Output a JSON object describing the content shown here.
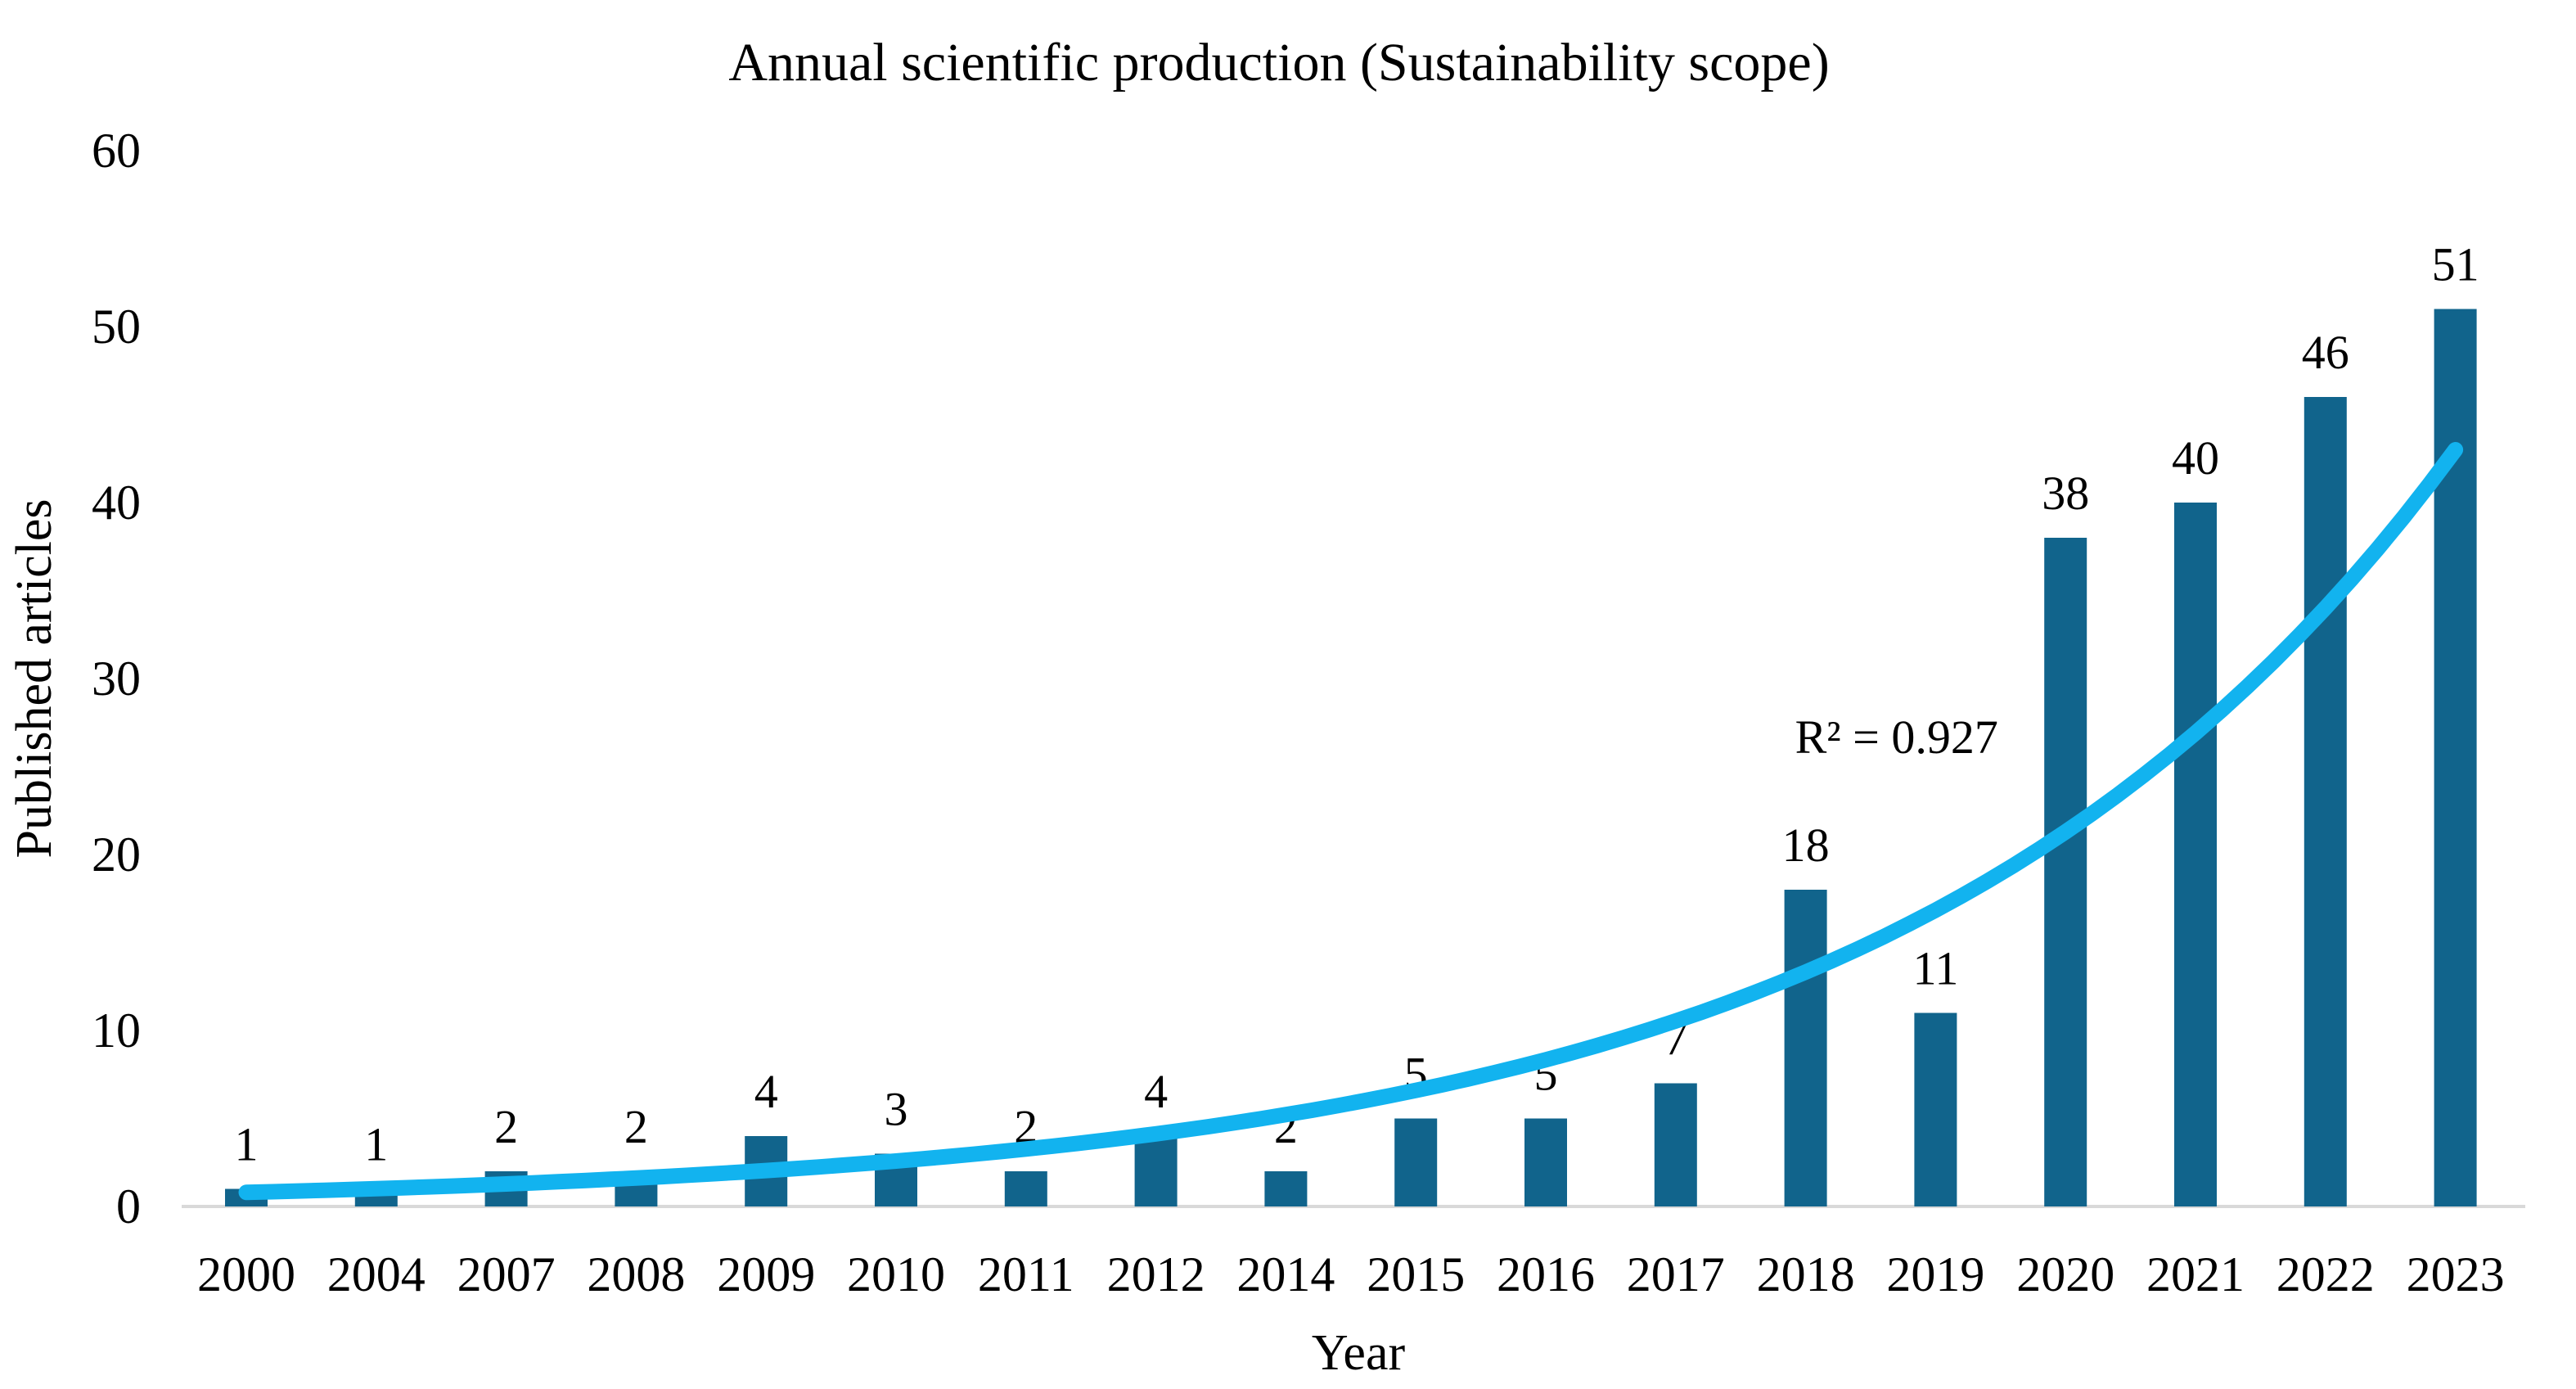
{
  "chart_data": {
    "type": "bar",
    "title": "Annual scientific production (Sustainability scope)",
    "xlabel": "Year",
    "ylabel": "Published articles",
    "categories": [
      "2000",
      "2004",
      "2007",
      "2008",
      "2009",
      "2010",
      "2011",
      "2012",
      "2014",
      "2015",
      "2016",
      "2017",
      "2018",
      "2019",
      "2020",
      "2021",
      "2022",
      "2023"
    ],
    "values": [
      1,
      1,
      2,
      2,
      4,
      3,
      2,
      4,
      2,
      5,
      5,
      7,
      18,
      11,
      38,
      40,
      46,
      51
    ],
    "data_labels": [
      "1",
      "1",
      "2",
      "2",
      "4",
      "3",
      "2",
      "4",
      "2",
      "5",
      "5",
      "7",
      "18",
      "11",
      "38",
      "40",
      "46",
      "51"
    ],
    "ylim": [
      0,
      60
    ],
    "yticks": [
      0,
      10,
      20,
      30,
      40,
      50,
      60
    ],
    "grid": false,
    "legend": "none",
    "bar_color": "#11648c",
    "axis_line_color": "#d9d9d9",
    "text_color": "#000000",
    "trendline": {
      "type": "exponential",
      "color": "#12b3ef",
      "start_value": 0.8,
      "end_value": 43,
      "r2": 0.927,
      "label": "R² = 0.927",
      "label_pos": {
        "x_index": 12.7,
        "y_value": 26.7
      }
    }
  }
}
